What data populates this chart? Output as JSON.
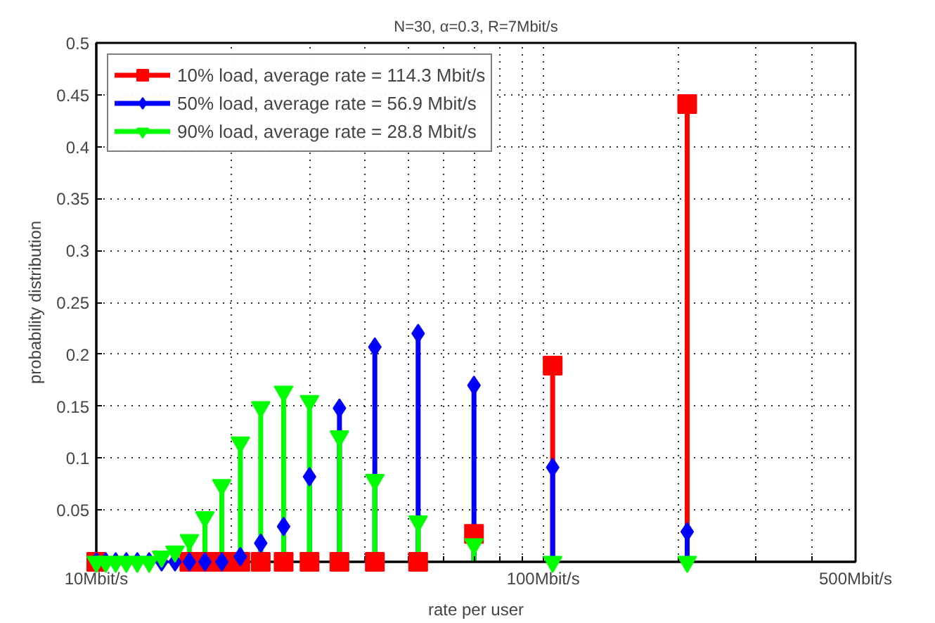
{
  "chart_data": {
    "type": "lollipop",
    "title": "N=30, α=0.3, R=7Mbit/s",
    "xlabel": "rate per user",
    "ylabel": "probability distribution",
    "x": [
      210,
      105,
      70,
      52.5,
      42,
      35,
      30,
      26.25,
      23.33,
      21,
      19.09,
      17.5,
      16.15,
      15,
      14,
      13.13,
      12.35,
      11.67,
      11.05,
      10.5,
      10
    ],
    "series": [
      {
        "name": "10% load, average rate = 114.3 Mbit/s",
        "color": "#ff0000",
        "marker": "square",
        "values": [
          0.441,
          0.189,
          0.027,
          0,
          0,
          0,
          0,
          0,
          0,
          0,
          0,
          0,
          0,
          null,
          null,
          null,
          null,
          null,
          null,
          null,
          0
        ]
      },
      {
        "name": "50% load, average rate = 56.9 Mbit/s",
        "color": "#0000ff",
        "marker": "diamond",
        "values": [
          0.029,
          0.091,
          0.17,
          0.22,
          0.207,
          0.148,
          0.082,
          0.034,
          0.018,
          0.005,
          0,
          0,
          0,
          0,
          0,
          0,
          0,
          0,
          0,
          0,
          0
        ]
      },
      {
        "name": "90% load, average rate = 28.8 Mbit/s",
        "color": "#00ff00",
        "marker": "triangle",
        "values": [
          0,
          0,
          0.017,
          0.039,
          0.079,
          0.121,
          0.155,
          0.164,
          0.149,
          0.115,
          0.074,
          0.043,
          0.021,
          0.01,
          0.005,
          0,
          0,
          0,
          0,
          0,
          0
        ]
      }
    ],
    "log": "x",
    "xlim": [
      10,
      500
    ],
    "xticks": [
      {
        "value": 10,
        "label": "10Mbit/s"
      },
      {
        "value": 20,
        "label": null
      },
      {
        "value": 30,
        "label": null
      },
      {
        "value": 40,
        "label": null
      },
      {
        "value": 50,
        "label": null
      },
      {
        "value": 60,
        "label": null
      },
      {
        "value": 70,
        "label": null
      },
      {
        "value": 80,
        "label": null
      },
      {
        "value": 90,
        "label": null
      },
      {
        "value": 100,
        "label": "100Mbit/s"
      },
      {
        "value": 200,
        "label": null
      },
      {
        "value": 300,
        "label": null
      },
      {
        "value": 400,
        "label": null
      },
      {
        "value": 500,
        "label": "500Mbit/s"
      }
    ],
    "ylim": [
      0,
      0.5
    ],
    "yticks": [
      0.05,
      0.1,
      0.15,
      0.2,
      0.25,
      0.3,
      0.35,
      0.4,
      0.45,
      0.5
    ],
    "grid": true,
    "legend": "top left",
    "line_style": "solid"
  }
}
